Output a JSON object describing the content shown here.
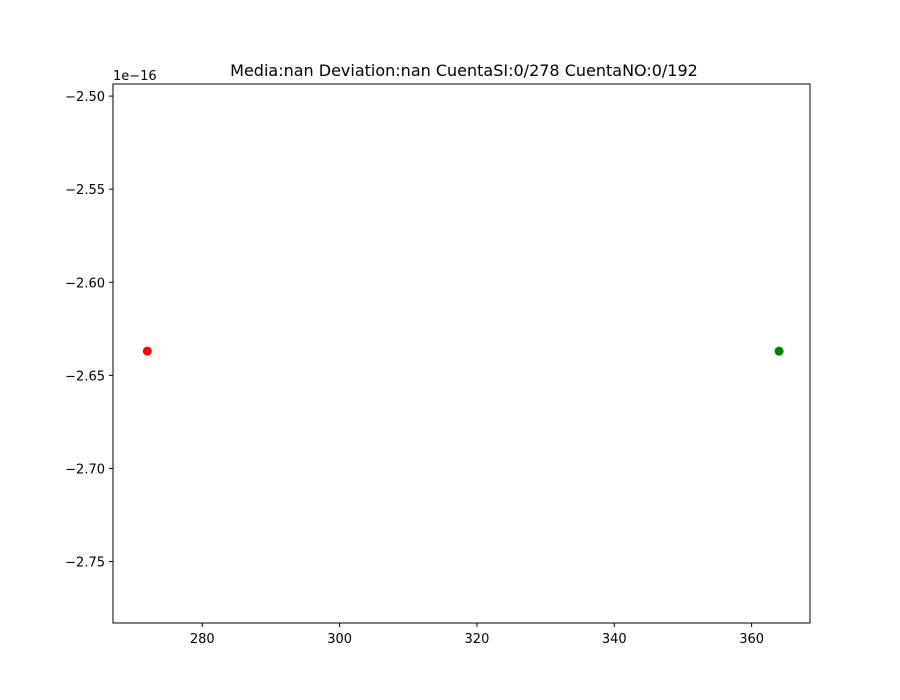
{
  "chart_data": {
    "type": "scatter",
    "title": "Media:nan Deviation:nan CuentaSI:0/278 CuentaNO:0/192",
    "xlabel": "",
    "ylabel": "",
    "y_offset_label": "1e−16",
    "xlim": [
      267,
      368.5
    ],
    "ylim": [
      -2.783,
      -2.4935
    ],
    "x_ticks": [
      280,
      300,
      320,
      340,
      360
    ],
    "x_tick_labels": [
      "280",
      "300",
      "320",
      "340",
      "360"
    ],
    "y_ticks": [
      -2.5,
      -2.55,
      -2.6,
      -2.65,
      -2.7,
      -2.75
    ],
    "y_tick_labels": [
      "−2.50",
      "−2.55",
      "−2.60",
      "−2.65",
      "−2.70",
      "−2.75"
    ],
    "grid": false,
    "points": [
      {
        "x": 272,
        "y": -2.637,
        "color": "#ff0000"
      },
      {
        "x": 364,
        "y": -2.637,
        "color": "#008000"
      }
    ]
  }
}
